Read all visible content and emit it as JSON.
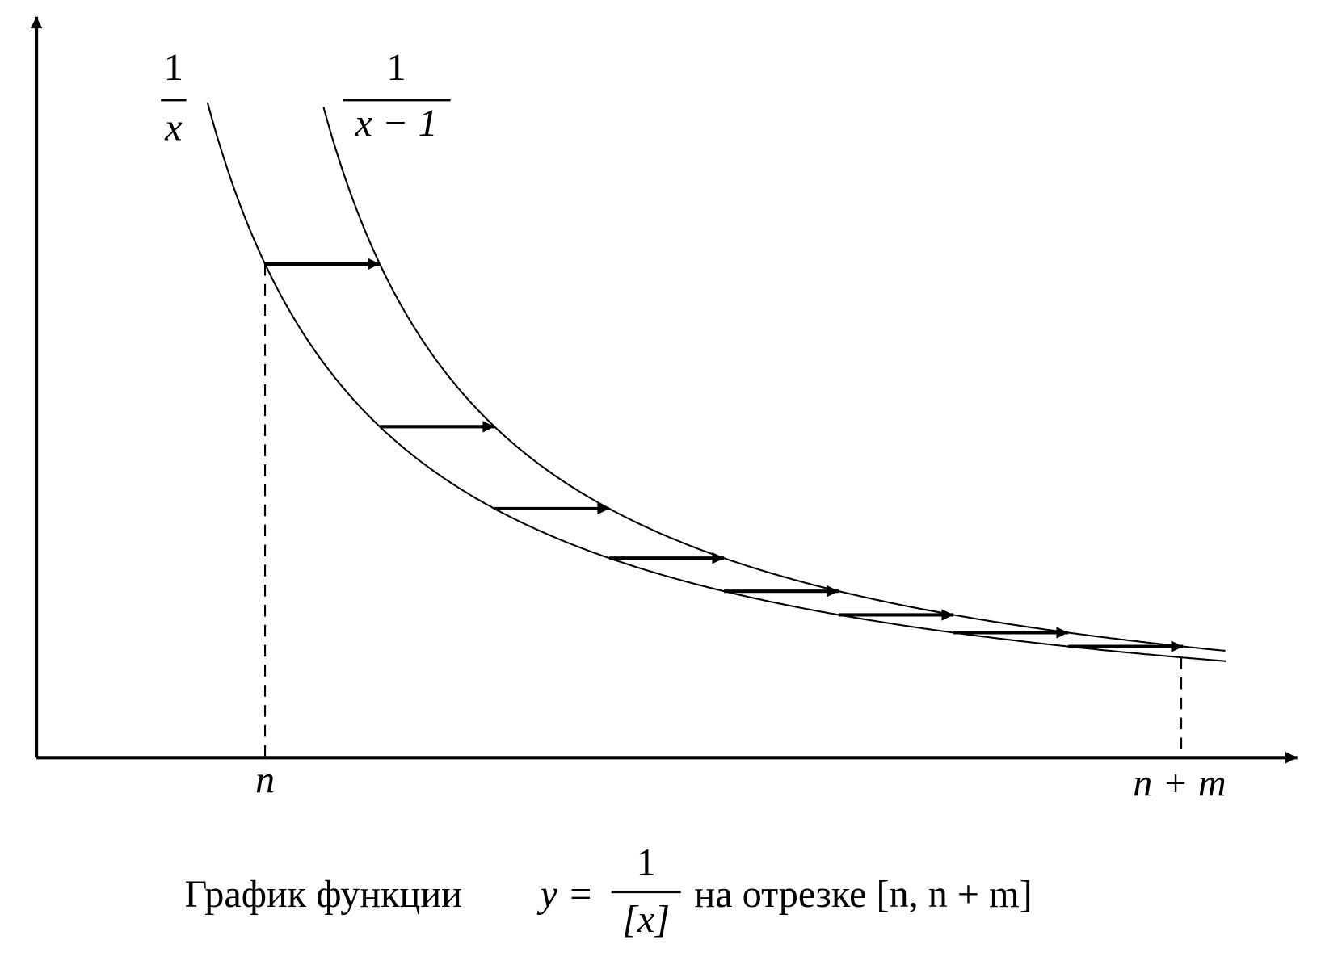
{
  "labels": {
    "f1": {
      "numerator": "1",
      "denominator": "x"
    },
    "f2": {
      "numerator": "1",
      "denominator": "x − 1"
    }
  },
  "axis": {
    "start": "n",
    "end": "n + m"
  },
  "caption": {
    "text": "График функции",
    "lhs": "y =",
    "numerator": "1",
    "denominator": "[x]",
    "tail": "на отрезке [n, n + m]"
  }
}
